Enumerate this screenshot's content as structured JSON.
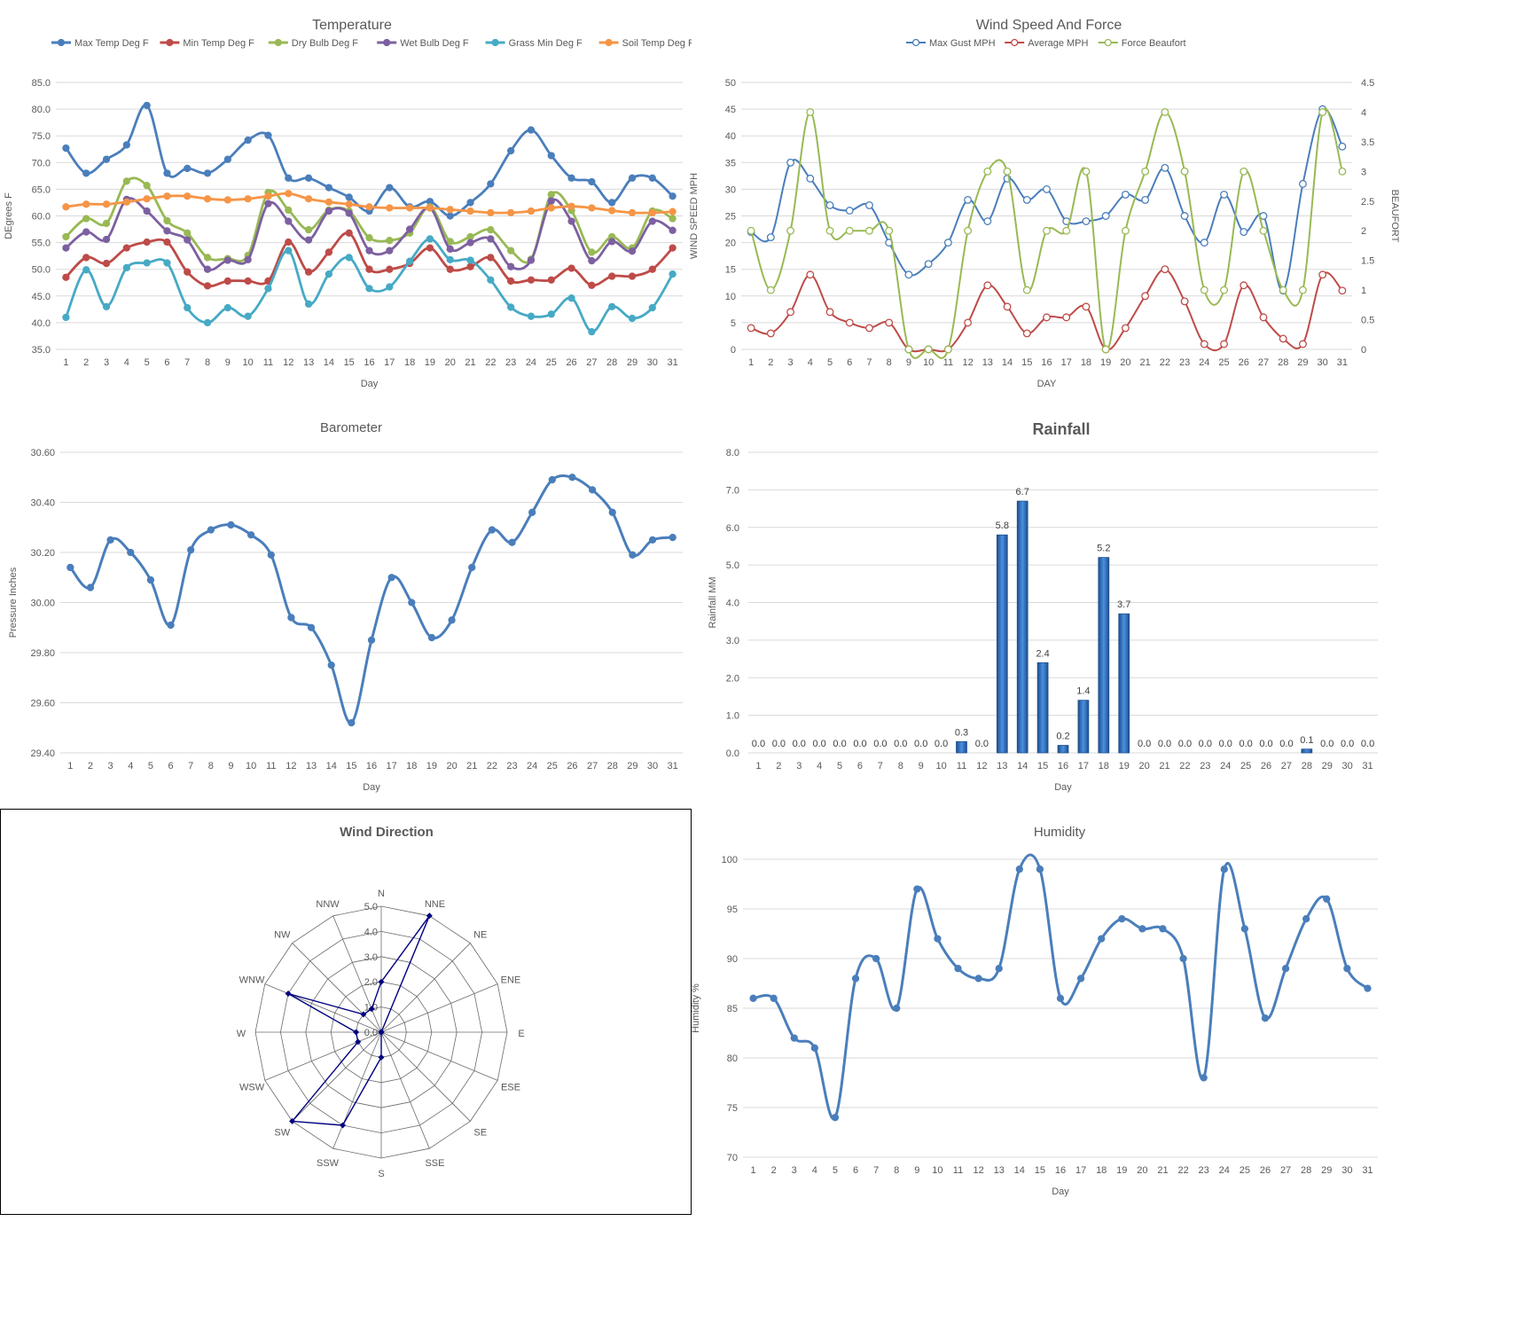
{
  "colors": {
    "blue": "#4a7ebb",
    "red": "#be4b48",
    "green": "#98b954",
    "purple": "#7d60a0",
    "cyan": "#46aac5",
    "orange": "#f69546",
    "navy": "#00007f",
    "grid": "#d9d9d9",
    "barBlue": "#2e6eb5"
  },
  "chart_data": [
    {
      "id": "temperature",
      "type": "line",
      "title": "Temperature",
      "xlabel": "Day",
      "ylabel": "DEgrees F",
      "x": [
        1,
        2,
        3,
        4,
        5,
        6,
        7,
        8,
        9,
        10,
        11,
        12,
        13,
        14,
        15,
        16,
        17,
        18,
        19,
        20,
        21,
        22,
        23,
        24,
        25,
        26,
        27,
        28,
        29,
        30,
        31
      ],
      "ylim": [
        35,
        85
      ],
      "yticks": [
        "35.0",
        "40.0",
        "45.0",
        "50.0",
        "55.0",
        "60.0",
        "65.0",
        "70.0",
        "75.0",
        "80.0",
        "85.0"
      ],
      "legend_position": "top",
      "series": [
        {
          "name": "Max Temp Deg F",
          "color": "#4a7ebb",
          "values": [
            72.7,
            68.0,
            70.6,
            73.3,
            80.7,
            68.0,
            68.9,
            68.0,
            70.6,
            74.2,
            75.1,
            67.1,
            67.1,
            65.3,
            63.5,
            60.9,
            65.3,
            61.7,
            62.7,
            60.0,
            62.5,
            66.0,
            72.2,
            76.1,
            71.3,
            67.1,
            66.4,
            62.5,
            67.1,
            67.1,
            63.7
          ]
        },
        {
          "name": "Min Temp Deg F",
          "color": "#be4b48",
          "values": [
            48.5,
            52.2,
            51.1,
            54.0,
            55.1,
            55.1,
            49.5,
            46.9,
            47.8,
            47.8,
            47.8,
            55.1,
            49.5,
            53.2,
            56.8,
            50.0,
            50.0,
            51.1,
            54.0,
            50.0,
            50.5,
            52.2,
            47.8,
            48.0,
            48.0,
            50.2,
            47.0,
            48.7,
            48.7,
            50.0,
            54.0
          ]
        },
        {
          "name": "Dry Bulb Deg F",
          "color": "#98b954",
          "values": [
            56.1,
            59.5,
            58.6,
            66.5,
            65.7,
            59.1,
            56.8,
            52.2,
            52.0,
            52.6,
            64.4,
            61.1,
            57.4,
            61.1,
            60.9,
            55.9,
            55.4,
            56.8,
            61.7,
            55.2,
            56.1,
            57.4,
            53.5,
            51.9,
            64.0,
            61.0,
            53.2,
            56.1,
            54.0,
            60.9,
            59.5
          ]
        },
        {
          "name": "Wet Bulb Deg F",
          "color": "#7d60a0",
          "values": [
            54.0,
            57.0,
            55.6,
            63.1,
            60.9,
            57.2,
            55.5,
            50.0,
            51.7,
            51.8,
            62.3,
            59.0,
            55.5,
            60.9,
            60.5,
            53.5,
            53.5,
            57.5,
            61.5,
            53.8,
            55.0,
            55.7,
            50.5,
            51.7,
            62.8,
            59.0,
            51.6,
            55.2,
            53.4,
            59.0,
            57.3
          ]
        },
        {
          "name": "Grass Min Deg F",
          "color": "#46aac5",
          "values": [
            41.0,
            49.9,
            43.0,
            50.3,
            51.2,
            51.2,
            42.8,
            40.0,
            42.8,
            41.2,
            46.4,
            53.5,
            43.5,
            49.1,
            52.2,
            46.4,
            46.7,
            51.5,
            55.7,
            51.8,
            51.7,
            48.0,
            42.9,
            41.2,
            41.6,
            44.6,
            38.3,
            43.0,
            40.8,
            42.8,
            49.1
          ]
        },
        {
          "name": "Soil Temp Deg F",
          "color": "#f69546",
          "values": [
            61.7,
            62.2,
            62.2,
            62.6,
            63.2,
            63.7,
            63.7,
            63.2,
            63.0,
            63.2,
            63.7,
            64.2,
            63.2,
            62.6,
            62.2,
            61.7,
            61.5,
            61.5,
            61.5,
            61.2,
            60.9,
            60.6,
            60.6,
            60.9,
            61.5,
            61.8,
            61.5,
            61.0,
            60.6,
            60.6,
            60.8
          ]
        }
      ]
    },
    {
      "id": "wind",
      "type": "line",
      "title": "Wind Speed And Force",
      "xlabel": "DAY",
      "ylabel": "WIND SPEED MPH",
      "y2label": "BEAUFORT",
      "x": [
        1,
        2,
        3,
        4,
        5,
        6,
        7,
        8,
        9,
        10,
        11,
        12,
        13,
        14,
        15,
        16,
        17,
        18,
        19,
        20,
        21,
        22,
        23,
        24,
        25,
        26,
        27,
        28,
        29,
        30,
        31
      ],
      "ylim": [
        0,
        50
      ],
      "yticks": [
        "0",
        "5",
        "10",
        "15",
        "20",
        "25",
        "30",
        "35",
        "40",
        "45",
        "50"
      ],
      "y2lim": [
        0,
        4.5
      ],
      "y2ticks": [
        "0",
        "0.5",
        "1",
        "1.5",
        "2",
        "2.5",
        "3",
        "3.5",
        "4",
        "4.5"
      ],
      "legend_position": "top",
      "series": [
        {
          "name": "Max Gust MPH",
          "axis": "left",
          "color": "#4a7ebb",
          "values": [
            22,
            21,
            35,
            32,
            27,
            26,
            27,
            20,
            14,
            16,
            20,
            28,
            24,
            32,
            28,
            30,
            24,
            24,
            25,
            29,
            28,
            34,
            25,
            20,
            29,
            22,
            25,
            11,
            31,
            45,
            38
          ]
        },
        {
          "name": "Average MPH",
          "axis": "left",
          "color": "#be4b48",
          "values": [
            4,
            3,
            7,
            14,
            7,
            5,
            4,
            5,
            0,
            0,
            0,
            5,
            12,
            8,
            3,
            6,
            6,
            8,
            0,
            4,
            10,
            15,
            9,
            1,
            1,
            12,
            6,
            2,
            1,
            14,
            11
          ]
        },
        {
          "name": "Force Beaufort",
          "axis": "right",
          "color": "#98b954",
          "values": [
            2,
            1,
            2,
            4,
            2,
            2,
            2,
            2,
            0,
            0,
            0,
            2,
            3,
            3,
            1,
            2,
            2,
            3,
            0,
            2,
            3,
            4,
            3,
            1,
            1,
            3,
            2,
            1,
            1,
            4,
            3
          ]
        }
      ]
    },
    {
      "id": "barometer",
      "type": "line",
      "title": "Barometer",
      "xlabel": "Day",
      "ylabel": "Pressure Inches",
      "x": [
        1,
        2,
        3,
        4,
        5,
        6,
        7,
        8,
        9,
        10,
        11,
        12,
        13,
        14,
        15,
        16,
        17,
        18,
        19,
        20,
        21,
        22,
        23,
        24,
        25,
        26,
        27,
        28,
        29,
        30,
        31
      ],
      "ylim": [
        29.4,
        30.6
      ],
      "yticks": [
        "29.40",
        "29.60",
        "29.80",
        "30.00",
        "30.20",
        "30.40",
        "30.60"
      ],
      "series": [
        {
          "name": "Pressure Inches",
          "color": "#4a7ebb",
          "values": [
            30.14,
            30.06,
            30.25,
            30.2,
            30.09,
            29.91,
            30.21,
            30.29,
            30.31,
            30.27,
            30.19,
            29.94,
            29.9,
            29.75,
            29.52,
            29.85,
            30.1,
            30.0,
            29.86,
            29.93,
            30.14,
            30.29,
            30.24,
            30.36,
            30.49,
            30.5,
            30.45,
            30.36,
            30.19,
            30.25,
            30.26
          ]
        }
      ]
    },
    {
      "id": "rainfall",
      "type": "bar",
      "title": "Rainfall",
      "xlabel": "Day",
      "ylabel": "Rainfall MM",
      "categories": [
        "1",
        "2",
        "3",
        "4",
        "5",
        "6",
        "7",
        "8",
        "9",
        "10",
        "11",
        "12",
        "13",
        "14",
        "15",
        "16",
        "17",
        "18",
        "19",
        "20",
        "21",
        "22",
        "23",
        "24",
        "25",
        "26",
        "27",
        "28",
        "29",
        "30",
        "31"
      ],
      "ylim": [
        0,
        8
      ],
      "yticks": [
        "0.0",
        "1.0",
        "2.0",
        "3.0",
        "4.0",
        "5.0",
        "6.0",
        "7.0",
        "8.0"
      ],
      "values": [
        0,
        0,
        0,
        0,
        0,
        0,
        0,
        0,
        0,
        0,
        0.3,
        0,
        5.8,
        6.7,
        2.4,
        0.2,
        1.4,
        5.2,
        3.7,
        0,
        0,
        0,
        0,
        0,
        0,
        0,
        0,
        0.1,
        0,
        0,
        0
      ],
      "labels": [
        "0.0",
        "0.0",
        "0.0",
        "0.0",
        "0.0",
        "0.0",
        "0.0",
        "0.0",
        "0.0",
        "0.0",
        "0.3",
        "0.0",
        "5.8",
        "6.7",
        "2.4",
        "0.2",
        "1.4",
        "5.2",
        "3.7",
        "0.0",
        "0.0",
        "0.0",
        "0.0",
        "0.0",
        "0.0",
        "0.0",
        "0.0",
        "0.1",
        "0.0",
        "0.0",
        "0.0"
      ]
    },
    {
      "id": "winddir",
      "type": "radar",
      "title": "Wind Direction",
      "categories": [
        "N",
        "NNE",
        "NE",
        "ENE",
        "E",
        "ESE",
        "SE",
        "SSE",
        "S",
        "SSW",
        "SW",
        "WSW",
        "W",
        "WNW",
        "NW",
        "NNW"
      ],
      "rlim": [
        0,
        5
      ],
      "rticks": [
        "0.0",
        "1.0",
        "2.0",
        "3.0",
        "4.0",
        "5.0"
      ],
      "values": [
        2,
        5,
        0,
        0,
        0,
        0,
        0,
        0,
        1,
        4,
        5,
        1,
        1,
        4,
        1,
        1
      ]
    },
    {
      "id": "humidity",
      "type": "line",
      "title": "Humidity",
      "xlabel": "Day",
      "ylabel": "Humidity %",
      "x": [
        1,
        2,
        3,
        4,
        5,
        6,
        7,
        8,
        9,
        10,
        11,
        12,
        13,
        14,
        15,
        16,
        17,
        18,
        19,
        20,
        21,
        22,
        23,
        24,
        25,
        26,
        27,
        28,
        29,
        30,
        31
      ],
      "ylim": [
        70,
        100
      ],
      "yticks": [
        "70",
        "75",
        "80",
        "85",
        "90",
        "95",
        "100"
      ],
      "series": [
        {
          "name": "Humidity %",
          "color": "#4a7ebb",
          "values": [
            86,
            86,
            82,
            81,
            74,
            88,
            90,
            85,
            97,
            92,
            89,
            88,
            89,
            99,
            99,
            86,
            88,
            92,
            94,
            93,
            93,
            90,
            78,
            99,
            93,
            84,
            89,
            94,
            96,
            89,
            87
          ]
        }
      ]
    }
  ]
}
